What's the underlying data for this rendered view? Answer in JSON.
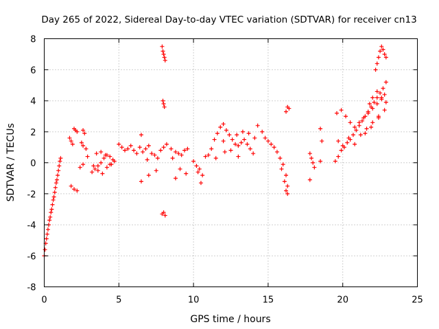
{
  "chart_data": {
    "type": "scatter",
    "title": "Day 265 of 2022, Sidereal Day-to-day VTEC variation (SDTVAR) for receiver cn13",
    "xlabel": "GPS time / hours",
    "ylabel": "SDTVAR / TECUs",
    "xlim": [
      0,
      25
    ],
    "ylim": [
      -8,
      8
    ],
    "xticks": [
      "0",
      "5",
      "10",
      "15",
      "20",
      "25"
    ],
    "yticks": [
      "-8",
      "-6",
      "-4",
      "-2",
      "0",
      "2",
      "4",
      "6",
      "8"
    ],
    "grid": true,
    "marker": "+",
    "color": "#ff0000",
    "series": [
      {
        "name": "cn13",
        "x": [
          0.0,
          0.05,
          0.1,
          0.15,
          0.2,
          0.25,
          0.3,
          0.35,
          0.4,
          0.45,
          0.5,
          0.55,
          0.6,
          0.65,
          0.7,
          0.75,
          0.8,
          0.85,
          0.9,
          0.95,
          1.0,
          1.05,
          1.1,
          1.7,
          1.8,
          1.9,
          2.0,
          2.1,
          2.2,
          1.8,
          2.0,
          2.2,
          2.6,
          2.7,
          2.5,
          2.6,
          2.8,
          2.9,
          2.4,
          2.6,
          3.2,
          3.4,
          3.6,
          3.8,
          4.0,
          4.2,
          4.4,
          4.6,
          3.5,
          3.8,
          4.1,
          4.4,
          3.3,
          3.6,
          3.9,
          4.2,
          4.5,
          4.7,
          5.0,
          5.2,
          5.4,
          5.6,
          5.8,
          6.0,
          6.2,
          6.4,
          6.5,
          6.6,
          6.8,
          7.0,
          7.2,
          7.4,
          7.6,
          7.8,
          8.0,
          8.2,
          8.5,
          8.8,
          9.0,
          9.2,
          9.4,
          9.6,
          7.9,
          7.95,
          8.0,
          8.05,
          8.1,
          7.95,
          8.0,
          8.05,
          7.9,
          8.0,
          8.1,
          6.5,
          7.0,
          7.5,
          6.9,
          8.8,
          9.1,
          9.5,
          8.6,
          10.0,
          10.2,
          10.4,
          10.5,
          10.8,
          11.0,
          11.2,
          11.4,
          11.6,
          11.8,
          12.0,
          12.2,
          12.4,
          12.6,
          12.8,
          13.0,
          13.2,
          13.4,
          13.6,
          13.8,
          14.0,
          10.3,
          10.6,
          11.5,
          12.1,
          12.9,
          13.3,
          13.7,
          14.1,
          12.0,
          12.5,
          13.0,
          14.3,
          14.6,
          14.8,
          15.0,
          15.2,
          15.4,
          15.6,
          15.8,
          16.0,
          16.2,
          16.3,
          16.1,
          16.2,
          16.3,
          15.9,
          16.4,
          16.2,
          16.3,
          17.8,
          17.9,
          18.0,
          18.1,
          17.8,
          18.5,
          18.6,
          18.5,
          19.5,
          19.7,
          19.9,
          20.1,
          20.3,
          20.5,
          20.7,
          20.9,
          21.1,
          21.3,
          21.5,
          21.7,
          21.9,
          22.1,
          22.3,
          22.5,
          22.7,
          22.9,
          19.6,
          19.9,
          20.2,
          20.5,
          20.8,
          21.1,
          21.4,
          21.7,
          22.0,
          22.3,
          22.6,
          22.8,
          19.7,
          20.0,
          20.4,
          20.8,
          21.2,
          21.6,
          22.0,
          22.4,
          22.8,
          22.2,
          22.3,
          22.4,
          22.5,
          22.6,
          22.7,
          22.8,
          22.9,
          21.8,
          22.0,
          22.3,
          22.6,
          22.9,
          21.5,
          21.9,
          22.4
        ],
        "y": [
          -6.0,
          -5.6,
          -5.2,
          -4.9,
          -4.6,
          -4.3,
          -4.0,
          -3.7,
          -3.5,
          -3.2,
          -3.0,
          -2.7,
          -2.4,
          -2.2,
          -1.9,
          -1.6,
          -1.3,
          -1.1,
          -0.8,
          -0.5,
          -0.2,
          0.1,
          0.3,
          1.6,
          1.4,
          1.2,
          2.2,
          2.1,
          2.0,
          -1.5,
          -1.7,
          -1.8,
          2.1,
          1.9,
          1.3,
          1.1,
          0.9,
          0.4,
          -0.3,
          -0.1,
          -0.6,
          -0.4,
          -0.2,
          0.0,
          0.3,
          0.5,
          0.4,
          0.2,
          0.6,
          0.7,
          0.5,
          -0.1,
          -0.2,
          -0.5,
          -0.7,
          -0.3,
          -0.1,
          0.1,
          1.2,
          1.0,
          0.8,
          0.9,
          1.1,
          0.8,
          0.6,
          1.0,
          1.8,
          0.7,
          0.9,
          1.1,
          0.6,
          0.5,
          0.3,
          0.8,
          1.0,
          1.2,
          0.9,
          0.7,
          0.6,
          0.5,
          0.8,
          0.9,
          7.5,
          7.2,
          7.0,
          6.8,
          6.6,
          4.0,
          3.8,
          3.6,
          -3.3,
          -3.2,
          -3.4,
          -1.2,
          -0.8,
          -0.5,
          0.2,
          -1.0,
          -0.4,
          -0.7,
          0.3,
          0.1,
          -0.2,
          -0.4,
          -1.3,
          0.4,
          0.5,
          0.9,
          1.5,
          1.9,
          2.3,
          2.5,
          2.1,
          1.8,
          1.5,
          1.2,
          1.1,
          1.3,
          1.5,
          1.2,
          0.9,
          0.6,
          -0.6,
          -0.8,
          0.3,
          0.7,
          1.8,
          2.0,
          1.9,
          1.6,
          1.4,
          0.8,
          0.4,
          2.4,
          2.0,
          1.6,
          1.4,
          1.2,
          1.0,
          0.7,
          0.3,
          -0.1,
          -0.8,
          -1.5,
          -1.2,
          -1.8,
          -2.0,
          -0.4,
          3.5,
          3.3,
          3.6,
          0.6,
          0.3,
          0.0,
          -0.3,
          -1.1,
          2.2,
          1.4,
          0.1,
          0.1,
          0.4,
          0.8,
          1.0,
          1.3,
          1.5,
          1.8,
          2.1,
          2.4,
          2.7,
          3.0,
          3.3,
          3.6,
          3.9,
          4.2,
          4.5,
          4.8,
          5.2,
          3.2,
          3.4,
          3.0,
          2.6,
          2.3,
          2.6,
          2.9,
          3.2,
          3.5,
          3.8,
          4.1,
          4.4,
          1.4,
          1.1,
          1.6,
          1.2,
          1.8,
          2.2,
          2.6,
          3.0,
          3.4,
          6.0,
          6.4,
          6.8,
          7.2,
          7.5,
          7.3,
          7.0,
          6.8,
          3.8,
          4.2,
          4.6,
          4.2,
          3.9,
          1.9,
          2.3,
          2.9
        ]
      }
    ]
  }
}
